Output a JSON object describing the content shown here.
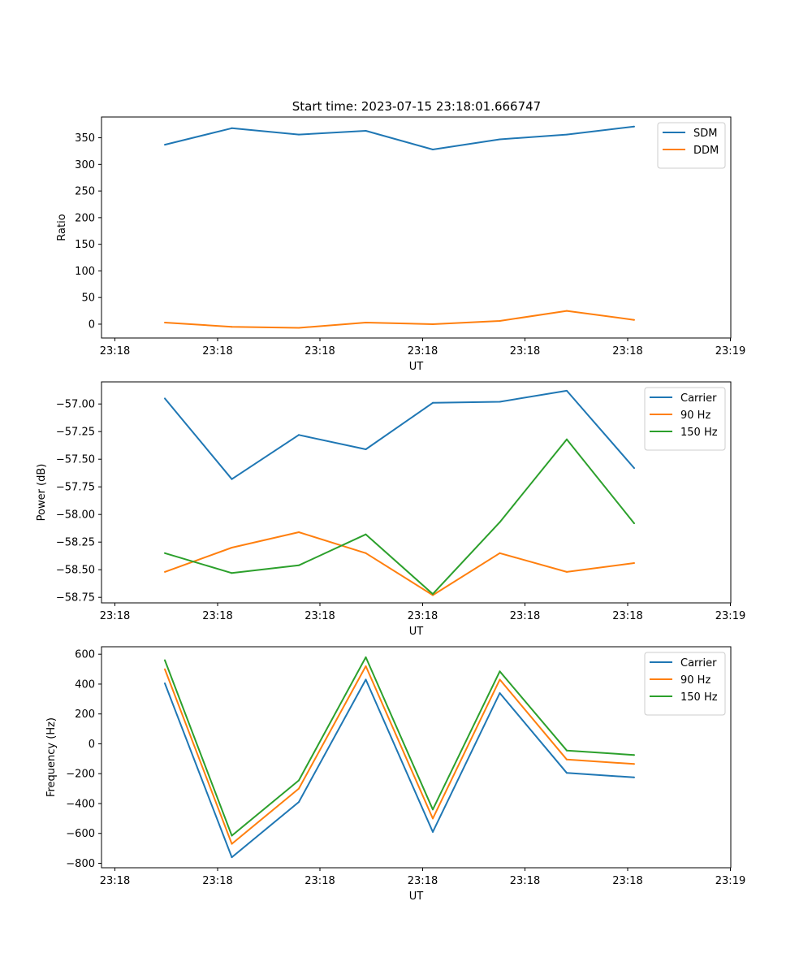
{
  "figure": {
    "title": "Start time: 2023-07-15 23:18:01.666747"
  },
  "chart_data": [
    {
      "type": "line",
      "title": "Start time: 2023-07-15 23:18:01.666747",
      "xlabel": "UT",
      "ylabel": "Ratio",
      "x_tick_labels": [
        "23:18",
        "23:18",
        "23:18",
        "23:18",
        "23:18",
        "23:18",
        "23:19"
      ],
      "y_ticks": [
        0,
        50,
        100,
        150,
        200,
        250,
        300,
        350
      ],
      "y_tick_labels": [
        "0",
        "50",
        "100",
        "150",
        "200",
        "250",
        "300",
        "350"
      ],
      "ylim": [
        -26,
        389
      ],
      "legend_position": "top-right",
      "series": [
        {
          "name": "SDM",
          "color": "#1f77b4",
          "values": [
            337,
            368,
            356,
            363,
            328,
            347,
            356,
            371
          ]
        },
        {
          "name": "DDM",
          "color": "#ff7f0e",
          "values": [
            3,
            -5,
            -7,
            3,
            0,
            6,
            25,
            8
          ]
        }
      ]
    },
    {
      "type": "line",
      "title": "",
      "xlabel": "UT",
      "ylabel": "Power (dB)",
      "x_tick_labels": [
        "23:18",
        "23:18",
        "23:18",
        "23:18",
        "23:18",
        "23:18",
        "23:19"
      ],
      "y_ticks": [
        -58.75,
        -58.5,
        -58.25,
        -58.0,
        -57.75,
        -57.5,
        -57.25,
        -57.0
      ],
      "y_tick_labels": [
        "−58.75",
        "−58.50",
        "−58.25",
        "−58.00",
        "−57.75",
        "−57.50",
        "−57.25",
        "−57.00"
      ],
      "ylim": [
        -58.8,
        -56.8
      ],
      "legend_position": "top-right",
      "series": [
        {
          "name": "Carrier",
          "color": "#1f77b4",
          "values": [
            -56.95,
            -57.68,
            -57.28,
            -57.41,
            -56.99,
            -56.98,
            -56.88,
            -57.58
          ]
        },
        {
          "name": "90 Hz",
          "color": "#ff7f0e",
          "values": [
            -58.52,
            -58.3,
            -58.16,
            -58.35,
            -58.73,
            -58.35,
            -58.52,
            -58.44
          ]
        },
        {
          "name": "150 Hz",
          "color": "#2ca02c",
          "values": [
            -58.35,
            -58.53,
            -58.46,
            -58.18,
            -58.72,
            -58.07,
            -57.32,
            -58.08
          ]
        }
      ]
    },
    {
      "type": "line",
      "title": "",
      "xlabel": "UT",
      "ylabel": "Frequency (Hz)",
      "x_tick_labels": [
        "23:18",
        "23:18",
        "23:18",
        "23:18",
        "23:18",
        "23:18",
        "23:19"
      ],
      "y_ticks": [
        -800,
        -600,
        -400,
        -200,
        0,
        200,
        400,
        600
      ],
      "y_tick_labels": [
        "−800",
        "−600",
        "−400",
        "−200",
        "0",
        "200",
        "400",
        "600"
      ],
      "ylim": [
        -830,
        650
      ],
      "legend_position": "top-right",
      "series": [
        {
          "name": "Carrier",
          "color": "#1f77b4",
          "values": [
            405,
            -760,
            -390,
            430,
            -590,
            340,
            -195,
            -225
          ]
        },
        {
          "name": "90 Hz",
          "color": "#ff7f0e",
          "values": [
            500,
            -670,
            -300,
            520,
            -500,
            430,
            -105,
            -135
          ]
        },
        {
          "name": "150 Hz",
          "color": "#2ca02c",
          "values": [
            560,
            -615,
            -245,
            580,
            -440,
            485,
            -45,
            -75
          ]
        }
      ]
    }
  ]
}
